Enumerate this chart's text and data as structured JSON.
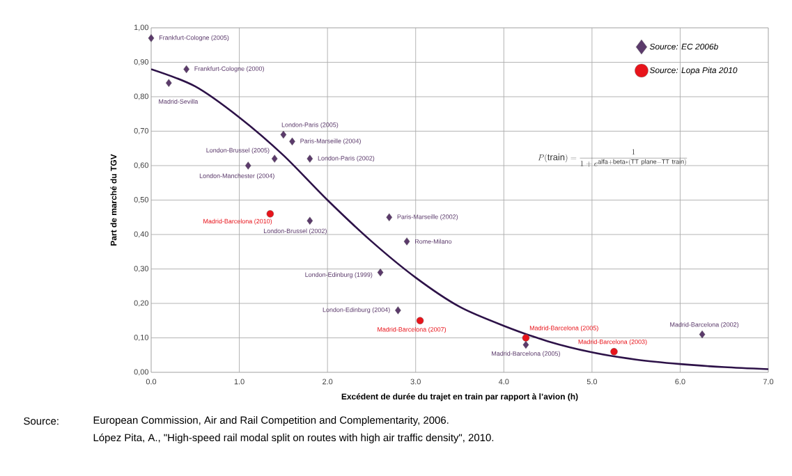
{
  "chart_data": {
    "type": "scatter",
    "xlabel": "Excédent de durée du trajet en train par rapport à  l’avion (h)",
    "ylabel": "Part de marché du TGV",
    "xlim": [
      0,
      7
    ],
    "ylim": [
      0,
      1
    ],
    "xticks": [
      {
        "value": 0,
        "label": "0.0"
      },
      {
        "value": 1,
        "label": "1.0"
      },
      {
        "value": 2,
        "label": "2.0"
      },
      {
        "value": 3,
        "label": "3.0"
      },
      {
        "value": 4,
        "label": "4.0"
      },
      {
        "value": 5,
        "label": "5.0"
      },
      {
        "value": 6,
        "label": "6.0"
      },
      {
        "value": 7,
        "label": "7.0"
      }
    ],
    "yticks": [
      {
        "value": 0,
        "label": "0,00"
      },
      {
        "value": 0.1,
        "label": "0,10"
      },
      {
        "value": 0.2,
        "label": "0,20"
      },
      {
        "value": 0.3,
        "label": "0,30"
      },
      {
        "value": 0.4,
        "label": "0,40"
      },
      {
        "value": 0.5,
        "label": "0,50"
      },
      {
        "value": 0.6,
        "label": "0,60"
      },
      {
        "value": 0.7,
        "label": "0,70"
      },
      {
        "value": 0.8,
        "label": "0,80"
      },
      {
        "value": 0.9,
        "label": "0,90"
      },
      {
        "value": 1,
        "label": "1,00"
      }
    ],
    "grid": true,
    "legend": "top right",
    "series": [
      {
        "name": "Source: EC 2006b",
        "type": "scatter",
        "marker": "diamond",
        "color": "#5b3a6b",
        "x": [
          0.0,
          0.2,
          0.4,
          1.1,
          1.4,
          1.5,
          1.6,
          1.8,
          1.8,
          2.6,
          2.7,
          2.8,
          2.9,
          4.25,
          6.25
        ],
        "values": [
          0.97,
          0.84,
          0.88,
          0.6,
          0.62,
          0.69,
          0.67,
          0.62,
          0.44,
          0.29,
          0.45,
          0.18,
          0.38,
          0.08,
          0.11
        ]
      },
      {
        "name": "Source: Lopa Pita 2010",
        "type": "scatter",
        "marker": "circle",
        "color": "#e8141b",
        "x": [
          1.35,
          3.05,
          4.25,
          5.25
        ],
        "values": [
          0.46,
          0.15,
          0.1,
          0.06
        ]
      },
      {
        "type": "line",
        "marker": "none",
        "color": "#2d1248",
        "x": [
          0,
          0.5,
          1,
          1.5,
          2,
          2.5,
          3,
          3.5,
          4,
          4.5,
          5,
          5.5,
          6,
          6.5,
          7
        ],
        "values": [
          0.88,
          0.83,
          0.74,
          0.63,
          0.5,
          0.38,
          0.275,
          0.19,
          0.135,
          0.09,
          0.058,
          0.037,
          0.024,
          0.015,
          0.009
        ]
      }
    ],
    "annotations": [
      {
        "text": "Frankfurt-Cologne (2005)",
        "x": 0.0,
        "y": 0.97
      },
      {
        "text": "Frankfurt-Cologne (2000)",
        "x": 0.4,
        "y": 0.88
      },
      {
        "text": "Madrid-Sevilla",
        "x": 0.2,
        "y": 0.84
      },
      {
        "text": "London-Paris (2005)",
        "x": 1.5,
        "y": 0.69
      },
      {
        "text": "Paris-Marseille (2004)",
        "x": 1.6,
        "y": 0.67
      },
      {
        "text": "London-Paris (2002)",
        "x": 1.8,
        "y": 0.62
      },
      {
        "text": "London-Brussel (2005)",
        "x": 1.4,
        "y": 0.62
      },
      {
        "text": "London-Manchester (2004)",
        "x": 1.1,
        "y": 0.6
      },
      {
        "text": "London-Brussel (2002)",
        "x": 1.8,
        "y": 0.44
      },
      {
        "text": "Paris-Marseille (2002)",
        "x": 2.7,
        "y": 0.45
      },
      {
        "text": "Rome-Milano",
        "x": 2.9,
        "y": 0.38
      },
      {
        "text": "London-Edinburg (1999)",
        "x": 2.6,
        "y": 0.29
      },
      {
        "text": "London-Edinburg (2004)",
        "x": 2.8,
        "y": 0.18
      },
      {
        "text": "Madrid-Barcelona (2005)",
        "x": 4.25,
        "y": 0.08
      },
      {
        "text": "Madrid-Barcelona (2002)",
        "x": 6.25,
        "y": 0.11
      },
      {
        "text": "Madrid-Barcelona (2010)",
        "x": 1.35,
        "y": 0.46
      },
      {
        "text": "Madrid-Barcelona (2007)",
        "x": 3.05,
        "y": 0.15
      },
      {
        "text": "Madrid-Barcelona (2005)",
        "x": 4.25,
        "y": 0.1
      },
      {
        "text": "Madrid-Barcelona (2003)",
        "x": 5.25,
        "y": 0.06
      },
      "P(\\mathrm{train}) = \\frac{1}{1 + e^{\\mathrm{alfa + beta{*}(TT\\ plane - TT\\ train)}}}",
      "Source:",
      "European Commission, Air and Rail Competition and Complementarity, 2006.",
      "López Pita, A., \"High-speed rail modal split on routes with high air traffic density\", 2010."
    ]
  }
}
